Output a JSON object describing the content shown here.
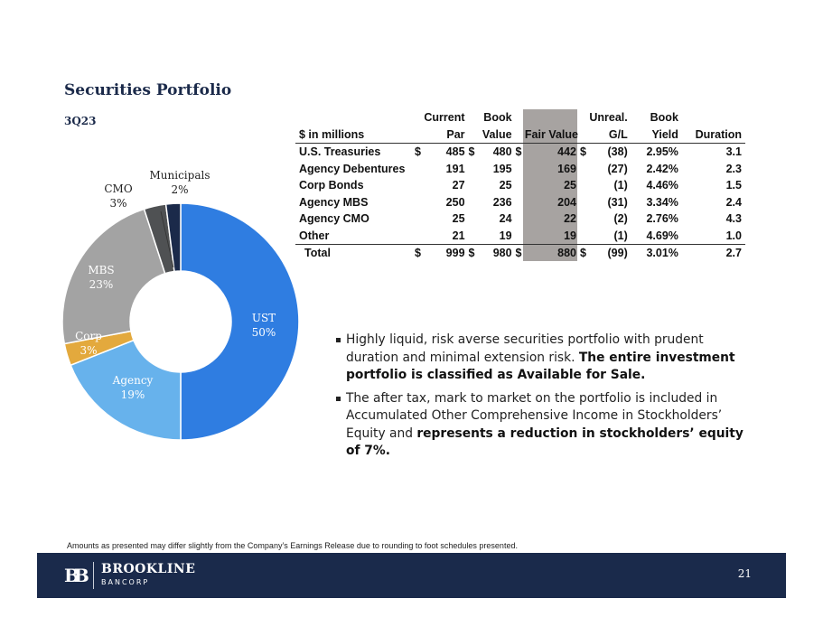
{
  "page": {
    "title": "Securities Portfolio",
    "subtitle": "3Q23",
    "footnote": "Amounts as presented may differ slightly from the Company’s Earnings Release due to rounding to foot schedules presented.",
    "page_number": "21"
  },
  "brand": {
    "mark": "BB",
    "name": "BROOKLINE",
    "sub": "BANCORP",
    "navy": "#1a2a4b"
  },
  "chart_data": {
    "type": "pie",
    "style": "donut",
    "title": "",
    "categories": [
      "UST",
      "Agency",
      "Corp",
      "MBS",
      "CMO",
      "Municipals"
    ],
    "values": [
      50,
      19,
      3,
      23,
      3,
      2
    ],
    "labels": [
      "50%",
      "19%",
      "3%",
      "23%",
      "3%",
      "2%"
    ],
    "colors": [
      "#2f7de1",
      "#67b2ec",
      "#e3a93d",
      "#a3a3a3",
      "#4f5153",
      "#1b2a4a"
    ]
  },
  "table": {
    "headers_top": [
      "",
      "Current",
      "Book",
      "",
      "Unreal.",
      "Book",
      ""
    ],
    "headers_bottom": [
      "$ in millions",
      "Par",
      "Value",
      "Fair Value",
      "G/L",
      "Yield",
      "Duration"
    ],
    "rows": [
      {
        "name": "U.S. Treasuries",
        "dollar": "$",
        "par": "485",
        "book": "480",
        "fair": "442",
        "gl": "(38)",
        "yield": "2.95%",
        "duration": "3.1"
      },
      {
        "name": "Agency Debentures",
        "dollar": "",
        "par": "191",
        "book": "195",
        "fair": "169",
        "gl": "(27)",
        "yield": "2.42%",
        "duration": "2.3"
      },
      {
        "name": "Corp Bonds",
        "dollar": "",
        "par": "27",
        "book": "25",
        "fair": "25",
        "gl": "(1)",
        "yield": "4.46%",
        "duration": "1.5"
      },
      {
        "name": "Agency MBS",
        "dollar": "",
        "par": "250",
        "book": "236",
        "fair": "204",
        "gl": "(31)",
        "yield": "3.34%",
        "duration": "2.4"
      },
      {
        "name": "Agency CMO",
        "dollar": "",
        "par": "25",
        "book": "24",
        "fair": "22",
        "gl": "(2)",
        "yield": "2.76%",
        "duration": "4.3"
      },
      {
        "name": "Other",
        "dollar": "",
        "par": "21",
        "book": "19",
        "fair": "19",
        "gl": "(1)",
        "yield": "4.69%",
        "duration": "1.0"
      }
    ],
    "total": {
      "name": "Total",
      "dollar": "$",
      "par": "999",
      "book": "980",
      "fair": "880",
      "gl": "(99)",
      "yield": "3.01%",
      "duration": "2.7"
    }
  },
  "bullets": [
    {
      "text": "Highly liquid, risk averse securities portfolio with prudent duration and minimal extension risk.  ",
      "highlight": "The entire investment portfolio is classified as Available for Sale."
    },
    {
      "text": "The after tax, mark to market on the portfolio is included in Accumulated Other Comprehensive Income in Stockholders’ Equity and ",
      "highlight": "represents a reduction in stockholders’ equity of 7%."
    }
  ]
}
